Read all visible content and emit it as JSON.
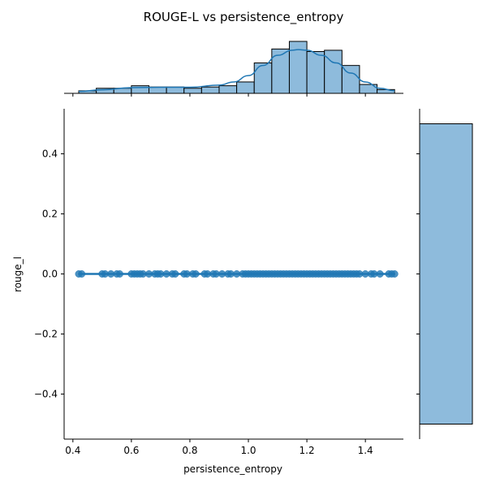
{
  "chart_data": {
    "type": "scatter",
    "title": "ROUGE-L vs persistence_entropy",
    "xlabel": "persistence_entropy",
    "ylabel": "rouge_l",
    "xlim": [
      0.37,
      1.53
    ],
    "ylim": [
      -0.55,
      0.55
    ],
    "x_ticks": [
      "0.4",
      "0.6",
      "0.8",
      "1.0",
      "1.2",
      "1.4"
    ],
    "y_ticks": [
      "0.4",
      "0.2",
      "0.0",
      "−0.2",
      "−0.4"
    ],
    "colors": {
      "scatter": "#1f77b4",
      "hist_fill": "#8ebbdc",
      "kde": "#1f77b4"
    },
    "scatter": {
      "y": 0.0,
      "x": [
        0.42,
        0.43,
        0.5,
        0.51,
        0.53,
        0.55,
        0.56,
        0.6,
        0.61,
        0.62,
        0.63,
        0.64,
        0.66,
        0.68,
        0.69,
        0.7,
        0.72,
        0.74,
        0.75,
        0.78,
        0.79,
        0.81,
        0.82,
        0.85,
        0.86,
        0.88,
        0.89,
        0.91,
        0.93,
        0.94,
        0.96,
        0.98,
        0.99,
        1.0,
        1.01,
        1.02,
        1.03,
        1.04,
        1.05,
        1.06,
        1.07,
        1.08,
        1.09,
        1.1,
        1.11,
        1.12,
        1.13,
        1.14,
        1.15,
        1.16,
        1.17,
        1.18,
        1.19,
        1.2,
        1.21,
        1.22,
        1.23,
        1.24,
        1.25,
        1.26,
        1.27,
        1.28,
        1.29,
        1.3,
        1.31,
        1.32,
        1.33,
        1.34,
        1.35,
        1.36,
        1.37,
        1.38,
        1.4,
        1.42,
        1.43,
        1.45,
        1.48,
        1.49,
        1.5
      ],
      "regression": {
        "x": [
          0.42,
          1.5
        ],
        "y": [
          0.0,
          0.0
        ]
      }
    },
    "x_hist": {
      "bin_start": 0.42,
      "bin_width": 0.06,
      "counts": [
        2,
        4,
        4,
        6,
        5,
        5,
        4,
        5,
        6,
        9,
        24,
        35,
        41,
        33,
        34,
        22,
        7,
        3
      ]
    },
    "x_kde": {
      "x": [
        0.42,
        0.5,
        0.6,
        0.7,
        0.8,
        0.9,
        0.95,
        1.0,
        1.05,
        1.1,
        1.15,
        1.17,
        1.2,
        1.25,
        1.3,
        1.35,
        1.4,
        1.45,
        1.5
      ],
      "y": [
        1.5,
        2.8,
        4.5,
        4.8,
        4.8,
        6.5,
        9,
        14,
        22,
        30,
        34,
        34.5,
        34,
        30,
        24,
        16,
        9,
        4,
        2
      ]
    },
    "y_hist": {
      "bins": [
        [
          -0.5,
          0.5
        ]
      ],
      "counts": [
        1
      ]
    }
  }
}
